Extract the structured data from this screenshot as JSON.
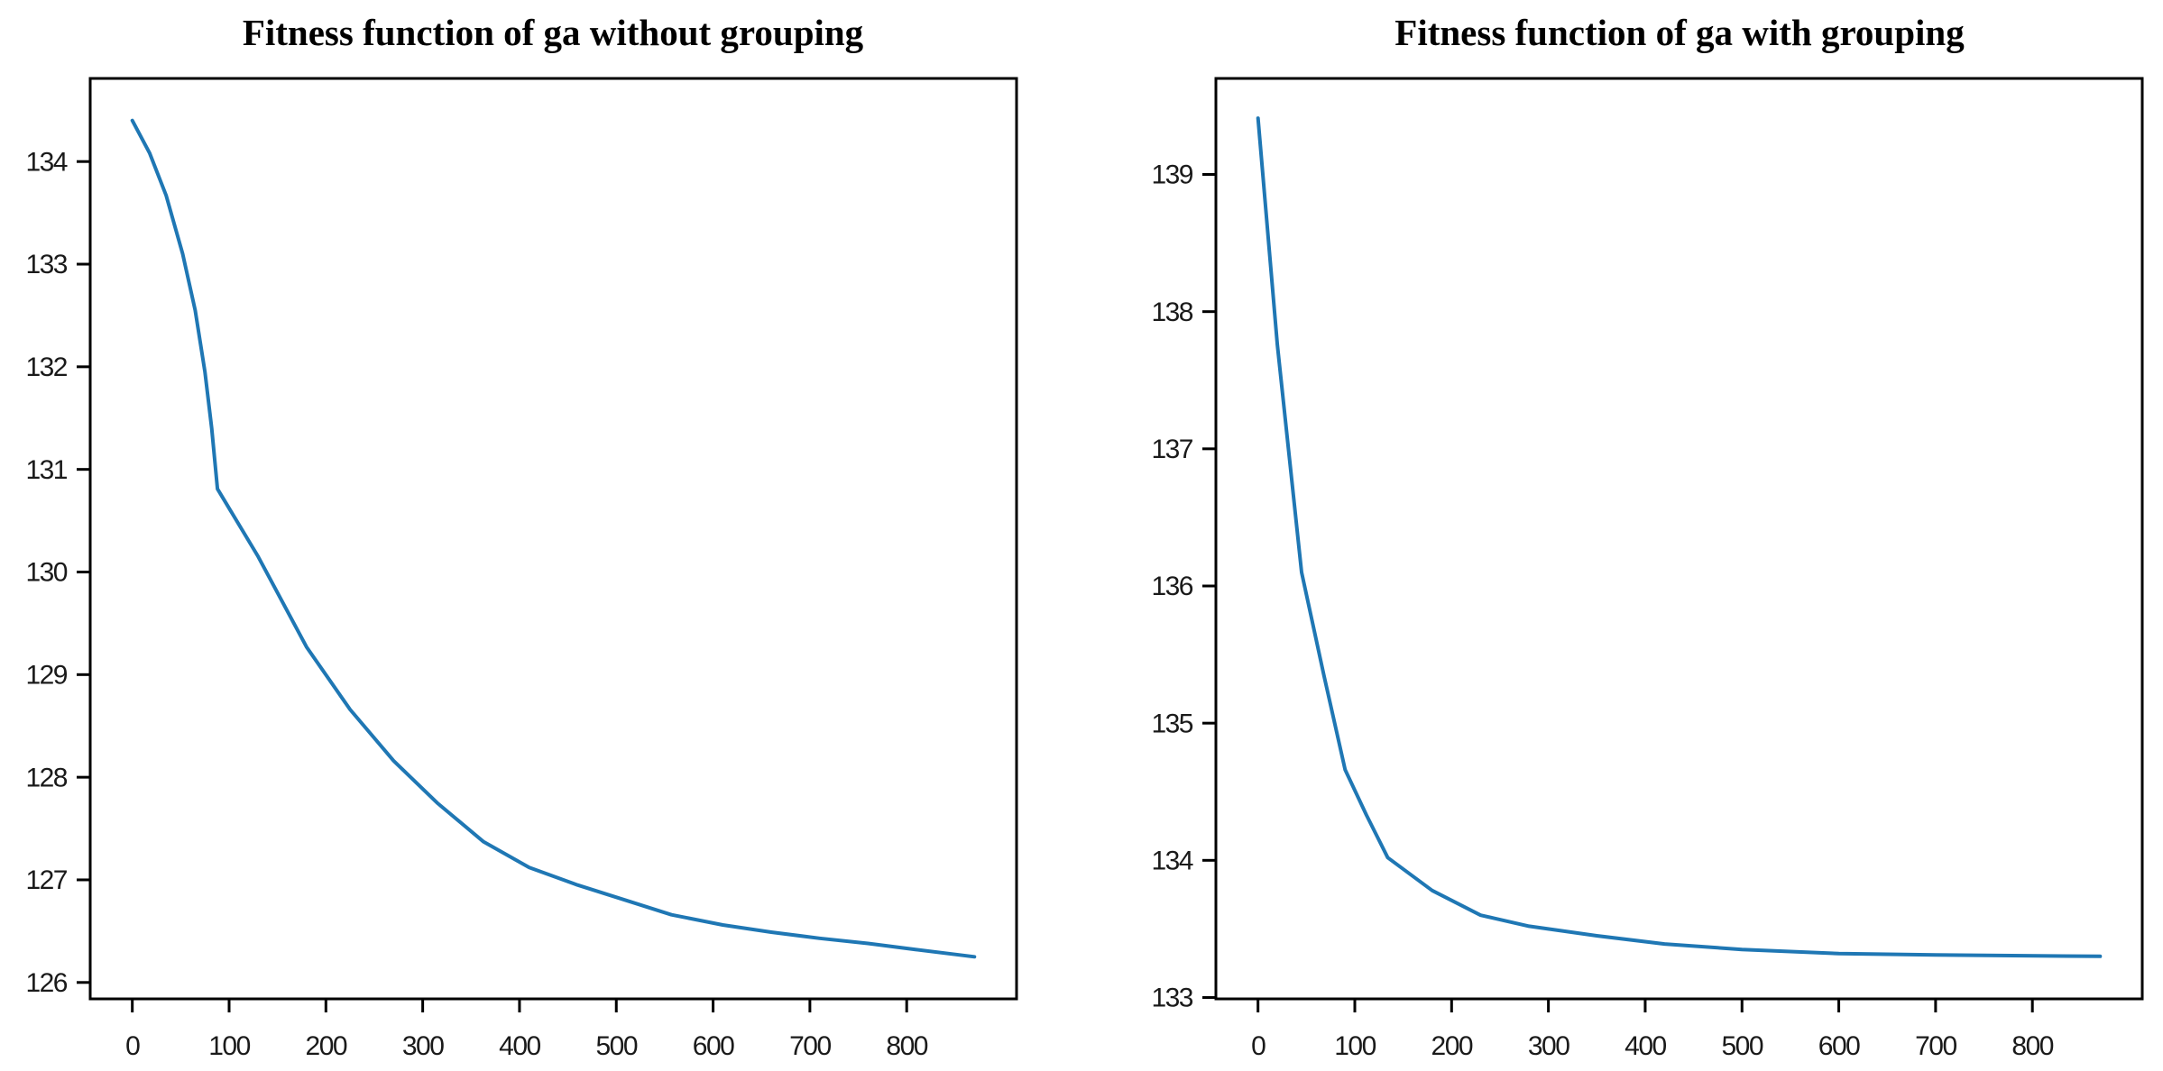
{
  "figure": {
    "background_color": "#ffffff",
    "line_color": "#1f77b4",
    "axis_color": "#000000",
    "tick_label_color": "#1a1a1a"
  },
  "chart_data": [
    {
      "type": "line",
      "title": "Fitness function of ga without grouping",
      "xlabel": "",
      "ylabel": "",
      "xlim": [
        -43.5,
        913.5
      ],
      "ylim": [
        125.84,
        134.81
      ],
      "xticks": [
        0,
        100,
        200,
        300,
        400,
        500,
        600,
        700,
        800
      ],
      "yticks": [
        126,
        127,
        128,
        129,
        130,
        131,
        132,
        133,
        134
      ],
      "grid": false,
      "legend": "none",
      "line_color": "#1f77b4",
      "x": [
        0,
        18,
        35,
        52,
        65,
        75,
        82,
        88,
        130,
        180,
        225,
        270,
        315,
        363,
        410,
        460,
        510,
        557,
        610,
        660,
        710,
        760,
        810,
        870
      ],
      "y": [
        134.4,
        134.08,
        133.67,
        133.1,
        132.55,
        131.95,
        131.4,
        130.81,
        130.15,
        129.27,
        128.66,
        128.16,
        127.75,
        127.37,
        127.12,
        126.95,
        126.8,
        126.66,
        126.56,
        126.49,
        126.43,
        126.38,
        126.32,
        126.25
      ]
    },
    {
      "type": "line",
      "title": "Fitness function of ga with grouping",
      "xlabel": "",
      "ylabel": "",
      "xlim": [
        -43.5,
        913.5
      ],
      "ylim": [
        132.99,
        139.7
      ],
      "xticks": [
        0,
        100,
        200,
        300,
        400,
        500,
        600,
        700,
        800
      ],
      "yticks": [
        133,
        134,
        135,
        136,
        137,
        138,
        139
      ],
      "grid": false,
      "legend": "none",
      "line_color": "#1f77b4",
      "x": [
        0,
        20,
        45,
        68,
        90,
        112,
        134,
        180,
        230,
        280,
        350,
        420,
        500,
        600,
        700,
        870
      ],
      "y": [
        139.41,
        137.76,
        136.1,
        135.35,
        134.66,
        134.33,
        134.02,
        133.78,
        133.6,
        133.52,
        133.45,
        133.39,
        133.35,
        133.32,
        133.31,
        133.3
      ]
    }
  ]
}
